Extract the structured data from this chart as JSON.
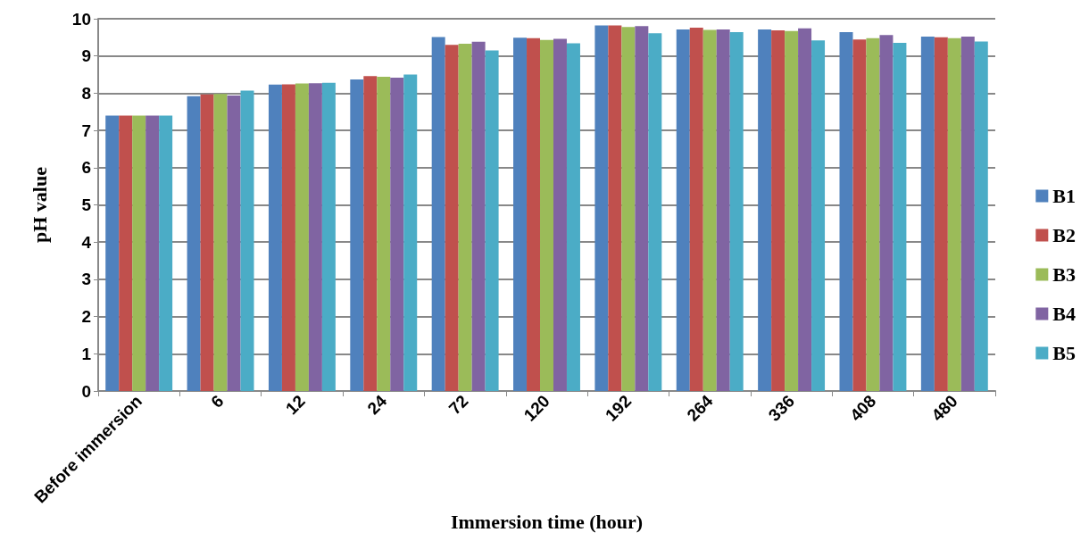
{
  "chart_data": {
    "type": "bar",
    "xlabel": "Immersion time (hour)",
    "ylabel": "pH value",
    "categories": [
      "Before immersion",
      "6",
      "12",
      "24",
      "72",
      "120",
      "192",
      "264",
      "336",
      "408",
      "480"
    ],
    "series": [
      {
        "name": "B1",
        "color": "#4f81bd",
        "values": [
          7.4,
          7.92,
          8.23,
          8.37,
          9.51,
          9.49,
          9.82,
          9.71,
          9.71,
          9.64,
          9.52
        ]
      },
      {
        "name": "B2",
        "color": "#c0504d",
        "values": [
          7.4,
          7.97,
          8.24,
          8.46,
          9.3,
          9.48,
          9.82,
          9.76,
          9.69,
          9.44,
          9.5
        ]
      },
      {
        "name": "B3",
        "color": "#9bbb59",
        "values": [
          7.4,
          7.98,
          8.26,
          8.44,
          9.33,
          9.43,
          9.78,
          9.7,
          9.67,
          9.48,
          9.48
        ]
      },
      {
        "name": "B4",
        "color": "#8064a2",
        "values": [
          7.4,
          7.94,
          8.27,
          8.42,
          9.38,
          9.46,
          9.8,
          9.71,
          9.74,
          9.56,
          9.52
        ]
      },
      {
        "name": "B5",
        "color": "#4bacc6",
        "values": [
          7.4,
          8.07,
          8.28,
          8.5,
          9.15,
          9.34,
          9.61,
          9.64,
          9.42,
          9.35,
          9.39
        ]
      }
    ],
    "ylim": [
      0,
      10
    ],
    "yticks": [
      0,
      1,
      2,
      3,
      4,
      5,
      6,
      7,
      8,
      9,
      10
    ],
    "grid": "y",
    "legend": "right"
  }
}
